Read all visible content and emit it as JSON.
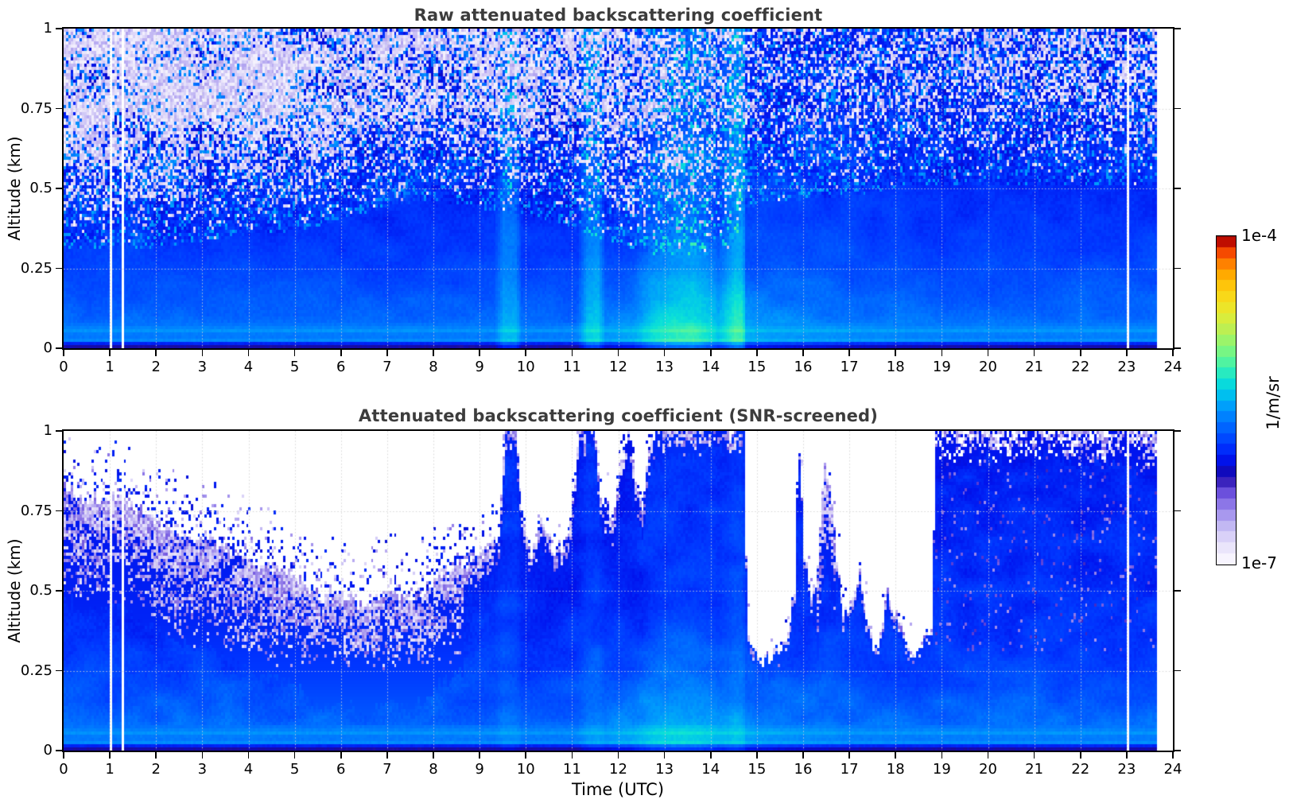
{
  "figure": {
    "background": "#ffffff",
    "title_color": "#3c3c3c",
    "axis_color": "#000000",
    "grid_color": "#d2d2d2"
  },
  "colorbar": {
    "label_top": "1e-4",
    "label_bottom": "1e-7",
    "unit": "1/m/sr",
    "levels": 30,
    "stops": [
      [
        0.0,
        "#fcfbff"
      ],
      [
        0.04,
        "#efebfc"
      ],
      [
        0.08,
        "#dbd4f8"
      ],
      [
        0.12,
        "#c0b5f3"
      ],
      [
        0.16,
        "#a08eec"
      ],
      [
        0.2,
        "#7e64e3"
      ],
      [
        0.24,
        "#5133d2"
      ],
      [
        0.265,
        "#1b0b9e"
      ],
      [
        0.29,
        "#0a0ac8"
      ],
      [
        0.32,
        "#0013ee"
      ],
      [
        0.36,
        "#0035ff"
      ],
      [
        0.4,
        "#0055ff"
      ],
      [
        0.44,
        "#0078ff"
      ],
      [
        0.48,
        "#009cfc"
      ],
      [
        0.52,
        "#00c2ee"
      ],
      [
        0.56,
        "#0ce2d6"
      ],
      [
        0.6,
        "#3cf0b0"
      ],
      [
        0.64,
        "#6cf78c"
      ],
      [
        0.68,
        "#98f46c"
      ],
      [
        0.72,
        "#c0ee50"
      ],
      [
        0.76,
        "#e0ec36"
      ],
      [
        0.8,
        "#f4e020"
      ],
      [
        0.84,
        "#fecc0e"
      ],
      [
        0.88,
        "#ffae00"
      ],
      [
        0.91,
        "#ff8a00"
      ],
      [
        0.94,
        "#fc6000"
      ],
      [
        0.96,
        "#ee3400"
      ],
      [
        0.98,
        "#cc0f00"
      ],
      [
        1.0,
        "#7e0000"
      ]
    ]
  },
  "chart_data": [
    {
      "type": "heatmap",
      "title": "Raw attenuated backscattering coefficient",
      "xlabel": "",
      "ylabel": "Altitude (km)",
      "xlim": [
        0,
        24
      ],
      "ylim": [
        0,
        1
      ],
      "xticks": [
        0,
        1,
        2,
        3,
        4,
        5,
        6,
        7,
        8,
        9,
        10,
        11,
        12,
        13,
        14,
        15,
        16,
        17,
        18,
        19,
        20,
        21,
        22,
        23,
        24
      ],
      "xtick_labels": [
        "0",
        "1",
        "2",
        "3",
        "4",
        "5",
        "6",
        "7",
        "8",
        "9",
        "10",
        "11",
        "12",
        "13",
        "14",
        "15",
        "16",
        "17",
        "18",
        "19",
        "20",
        "21",
        "22",
        "23",
        "24"
      ],
      "yticks": [
        0,
        0.25,
        0.5,
        0.75,
        1
      ],
      "ytick_labels": [
        "0",
        "0.25",
        "0.5",
        "0.75",
        "1"
      ],
      "grid": true,
      "value_min": "1e-7",
      "value_max": "1e-4",
      "units": "1/m/sr",
      "time_coverage_end_utc": 23.65,
      "data_gaps_utc": [
        [
          0.98,
          1.03
        ],
        [
          1.26,
          1.31
        ],
        [
          23.02,
          23.07
        ]
      ],
      "model": {
        "seed": 7,
        "base_profile": [
          [
            0,
            0.27
          ],
          [
            0.008,
            0.27
          ],
          [
            0.012,
            0.41
          ],
          [
            0.02,
            0.46
          ],
          [
            0.035,
            0.43
          ],
          [
            0.05,
            0.47
          ],
          [
            0.065,
            0.44
          ],
          [
            0.08,
            0.425
          ],
          [
            0.1,
            0.415
          ],
          [
            0.25,
            0.375
          ],
          [
            0.4,
            0.352
          ],
          [
            0.5,
            0.345
          ],
          [
            0.75,
            0.334
          ],
          [
            1,
            0.33
          ]
        ],
        "noise_floor_km": [
          [
            0,
            0.3
          ],
          [
            2,
            0.31
          ],
          [
            3,
            0.33
          ],
          [
            4,
            0.35
          ],
          [
            5,
            0.36
          ],
          [
            6,
            0.4
          ],
          [
            7,
            0.44
          ],
          [
            8,
            0.46
          ],
          [
            9,
            0.43
          ],
          [
            10,
            0.41
          ],
          [
            11,
            0.37
          ],
          [
            12,
            0.32
          ],
          [
            13,
            0.28
          ],
          [
            13.9,
            0.28
          ],
          [
            14.1,
            0.34
          ],
          [
            14.4,
            0.3
          ],
          [
            14.72,
            0.42
          ],
          [
            15,
            0.45
          ],
          [
            17,
            0.47
          ],
          [
            18,
            0.5
          ],
          [
            23.65,
            0.5
          ]
        ],
        "white_fraction_max": [
          [
            0,
            0.78
          ],
          [
            4,
            0.74
          ],
          [
            6,
            0.68
          ],
          [
            8,
            0.6
          ],
          [
            10,
            0.56
          ],
          [
            12,
            0.5
          ],
          [
            13,
            0.45
          ],
          [
            14,
            0.4
          ],
          [
            14.72,
            0.34
          ],
          [
            19,
            0.4
          ],
          [
            23.65,
            0.44
          ]
        ],
        "cyan_boost": [
          [
            0,
            0
          ],
          [
            9.3,
            0
          ],
          [
            9.5,
            0.07
          ],
          [
            9.75,
            0.07
          ],
          [
            9.9,
            0
          ],
          [
            11.1,
            0
          ],
          [
            11.3,
            0.08
          ],
          [
            11.55,
            0.08
          ],
          [
            11.7,
            0
          ],
          [
            12.3,
            0
          ],
          [
            12.7,
            0.05
          ],
          [
            13.2,
            0.08
          ],
          [
            13.6,
            0.09
          ],
          [
            13.95,
            0.06
          ],
          [
            14.15,
            0.03
          ],
          [
            14.35,
            0.08
          ],
          [
            14.5,
            0.12
          ],
          [
            14.68,
            0.12
          ],
          [
            14.75,
            0.02
          ],
          [
            15.5,
            0.015
          ],
          [
            16.5,
            0.02
          ],
          [
            17.5,
            0.015
          ],
          [
            19,
            0.005
          ],
          [
            23.65,
            0.005
          ]
        ],
        "low_boost": [
          [
            0,
            0
          ],
          [
            11,
            0
          ],
          [
            12,
            0.045
          ],
          [
            12.8,
            0.07
          ],
          [
            13.6,
            0.07
          ],
          [
            14.3,
            0.05
          ],
          [
            15,
            0.03
          ],
          [
            16,
            0.015
          ],
          [
            17,
            0
          ],
          [
            23.65,
            0
          ]
        ]
      }
    },
    {
      "type": "heatmap",
      "title": "Attenuated backscattering coefficient (SNR-screened)",
      "xlabel": "Time (UTC)",
      "ylabel": "Altitude (km)",
      "xlim": [
        0,
        24
      ],
      "ylim": [
        0,
        1
      ],
      "xticks": [
        0,
        1,
        2,
        3,
        4,
        5,
        6,
        7,
        8,
        9,
        10,
        11,
        12,
        13,
        14,
        15,
        16,
        17,
        18,
        19,
        20,
        21,
        22,
        23,
        24
      ],
      "xtick_labels": [
        "0",
        "1",
        "2",
        "3",
        "4",
        "5",
        "6",
        "7",
        "8",
        "9",
        "10",
        "11",
        "12",
        "13",
        "14",
        "15",
        "16",
        "17",
        "18",
        "19",
        "20",
        "21",
        "22",
        "23",
        "24"
      ],
      "yticks": [
        0,
        0.25,
        0.5,
        0.75,
        1
      ],
      "ytick_labels": [
        "0",
        "0.25",
        "0.5",
        "0.75",
        "1"
      ],
      "grid": true,
      "value_min": "1e-7",
      "value_max": "1e-4",
      "units": "1/m/sr",
      "time_coverage_end_utc": 23.65,
      "data_gaps_utc": [
        [
          0.98,
          1.03
        ],
        [
          1.26,
          1.31
        ],
        [
          23.02,
          23.07
        ]
      ],
      "model": {
        "seed": 11,
        "base_profile": [
          [
            0,
            0.27
          ],
          [
            0.008,
            0.27
          ],
          [
            0.012,
            0.41
          ],
          [
            0.02,
            0.46
          ],
          [
            0.035,
            0.43
          ],
          [
            0.05,
            0.47
          ],
          [
            0.065,
            0.44
          ],
          [
            0.08,
            0.425
          ],
          [
            0.1,
            0.415
          ],
          [
            0.25,
            0.375
          ],
          [
            0.4,
            0.352
          ],
          [
            0.5,
            0.345
          ],
          [
            0.75,
            0.334
          ],
          [
            1,
            0.33
          ]
        ],
        "signal_top_km": [
          [
            0,
            0.82
          ],
          [
            0.5,
            0.8
          ],
          [
            1,
            0.78
          ],
          [
            1.5,
            0.74
          ],
          [
            2,
            0.72
          ],
          [
            2.5,
            0.68
          ],
          [
            3,
            0.66
          ],
          [
            3.5,
            0.62
          ],
          [
            4,
            0.6
          ],
          [
            4.5,
            0.55
          ],
          [
            5,
            0.52
          ],
          [
            5.5,
            0.48
          ],
          [
            6,
            0.5
          ],
          [
            6.5,
            0.46
          ],
          [
            7,
            0.52
          ],
          [
            7.5,
            0.48
          ],
          [
            8,
            0.54
          ],
          [
            8.5,
            0.56
          ],
          [
            9,
            0.6
          ],
          [
            9.4,
            0.68
          ],
          [
            9.55,
            1.02
          ],
          [
            9.75,
            1.02
          ],
          [
            9.9,
            0.74
          ],
          [
            10.1,
            0.62
          ],
          [
            10.35,
            0.74
          ],
          [
            10.6,
            0.64
          ],
          [
            10.9,
            0.7
          ],
          [
            11.15,
            1.02
          ],
          [
            11.45,
            1.02
          ],
          [
            11.6,
            0.78
          ],
          [
            11.85,
            0.72
          ],
          [
            12.05,
            0.9
          ],
          [
            12.2,
            1.02
          ],
          [
            12.35,
            0.86
          ],
          [
            12.5,
            0.78
          ],
          [
            12.65,
            0.96
          ],
          [
            12.8,
            1.02
          ],
          [
            14.3,
            1.02
          ],
          [
            14.45,
            0.95
          ],
          [
            14.55,
            1.02
          ],
          [
            14.7,
            1.02
          ],
          [
            14.78,
            0.38
          ],
          [
            15,
            0.3
          ],
          [
            15.3,
            0.31
          ],
          [
            15.6,
            0.34
          ],
          [
            15.8,
            0.5
          ],
          [
            15.88,
            0.97
          ],
          [
            16,
            0.6
          ],
          [
            16.15,
            0.45
          ],
          [
            16.3,
            0.55
          ],
          [
            16.42,
            0.88
          ],
          [
            16.55,
            0.82
          ],
          [
            16.7,
            0.6
          ],
          [
            16.85,
            0.42
          ],
          [
            17.05,
            0.5
          ],
          [
            17.2,
            0.56
          ],
          [
            17.35,
            0.42
          ],
          [
            17.5,
            0.33
          ],
          [
            17.65,
            0.38
          ],
          [
            17.8,
            0.52
          ],
          [
            17.95,
            0.46
          ],
          [
            18.1,
            0.4
          ],
          [
            18.25,
            0.34
          ],
          [
            18.4,
            0.32
          ],
          [
            18.6,
            0.35
          ],
          [
            18.75,
            0.4
          ],
          [
            18.85,
            1.02
          ],
          [
            23.65,
            1.02
          ]
        ],
        "cyan_boost": [
          [
            0,
            0
          ],
          [
            9.3,
            0
          ],
          [
            9.5,
            0.04
          ],
          [
            9.75,
            0.04
          ],
          [
            9.9,
            0
          ],
          [
            11.1,
            0
          ],
          [
            11.3,
            0.04
          ],
          [
            11.55,
            0.04
          ],
          [
            11.7,
            0
          ],
          [
            12.3,
            0
          ],
          [
            12.7,
            0.04
          ],
          [
            13.2,
            0.06
          ],
          [
            13.6,
            0.06
          ],
          [
            13.95,
            0.05
          ],
          [
            14.15,
            0.03
          ],
          [
            14.35,
            0.05
          ],
          [
            14.5,
            0.08
          ],
          [
            14.68,
            0.08
          ],
          [
            14.75,
            0.02
          ],
          [
            15.5,
            0.01
          ],
          [
            16.5,
            0.015
          ],
          [
            17.5,
            0.01
          ],
          [
            19,
            0.005
          ],
          [
            23.65,
            0.005
          ]
        ],
        "low_boost": [
          [
            0,
            0
          ],
          [
            11,
            0
          ],
          [
            12,
            0.045
          ],
          [
            12.8,
            0.07
          ],
          [
            13.6,
            0.07
          ],
          [
            14.3,
            0.05
          ],
          [
            15,
            0.03
          ],
          [
            16,
            0.015
          ],
          [
            17,
            0
          ],
          [
            23.65,
            0
          ]
        ]
      }
    }
  ]
}
